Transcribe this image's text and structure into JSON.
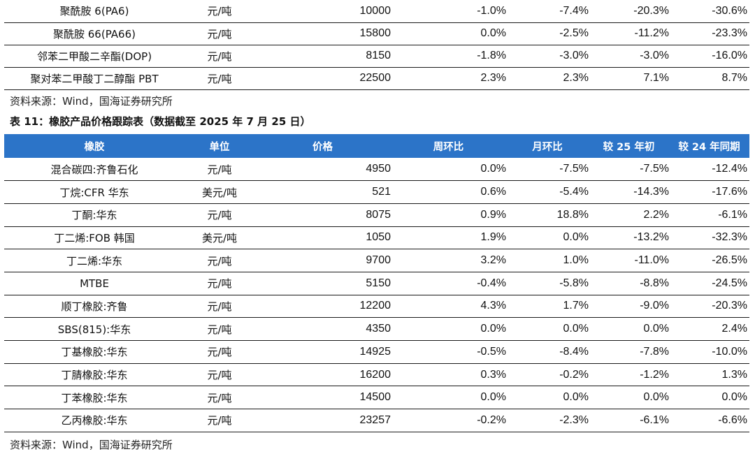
{
  "top_table": {
    "rows": [
      [
        "聚酰胺 6(PA6)",
        "元/吨",
        "10000",
        "-1.0%",
        "-7.4%",
        "-20.3%",
        "-30.6%"
      ],
      [
        "聚酰胺 66(PA66)",
        "元/吨",
        "15800",
        "0.0%",
        "-2.5%",
        "-11.2%",
        "-23.3%"
      ],
      [
        "邻苯二甲酸二辛酯(DOP)",
        "元/吨",
        "8150",
        "-1.8%",
        "-3.0%",
        "-3.0%",
        "-16.0%"
      ],
      [
        "聚对苯二甲酸丁二醇酯 PBT",
        "元/吨",
        "22500",
        "2.3%",
        "2.3%",
        "7.1%",
        "8.7%"
      ]
    ]
  },
  "source_note_1": "资料来源：Wind，国海证券研究所",
  "table_caption": "表 11：橡胶产品价格跟踪表（数据截至 2025 年 7 月 25 日）",
  "main_table": {
    "header_color": "#2c74c8",
    "headers": [
      "橡胶",
      "单位",
      "价格",
      "周环比",
      "月环比",
      "较 25 年初",
      "较 24 年同期"
    ],
    "rows": [
      [
        "混合碳四:齐鲁石化",
        "元/吨",
        "4950",
        "0.0%",
        "-7.5%",
        "-7.5%",
        "-12.4%"
      ],
      [
        "丁烷:CFR 华东",
        "美元/吨",
        "521",
        "0.6%",
        "-5.4%",
        "-14.3%",
        "-17.6%"
      ],
      [
        "丁酮:华东",
        "元/吨",
        "8075",
        "0.9%",
        "18.8%",
        "2.2%",
        "-6.1%"
      ],
      [
        "丁二烯:FOB 韩国",
        "美元/吨",
        "1050",
        "1.9%",
        "0.0%",
        "-13.2%",
        "-32.3%"
      ],
      [
        "丁二烯:华东",
        "元/吨",
        "9700",
        "3.2%",
        "1.0%",
        "-11.0%",
        "-26.5%"
      ],
      [
        "MTBE",
        "元/吨",
        "5150",
        "-0.4%",
        "-5.8%",
        "-8.8%",
        "-24.5%"
      ],
      [
        "顺丁橡胶:齐鲁",
        "元/吨",
        "12200",
        "4.3%",
        "1.7%",
        "-9.0%",
        "-20.3%"
      ],
      [
        "SBS(815):华东",
        "元/吨",
        "4350",
        "0.0%",
        "0.0%",
        "0.0%",
        "2.4%"
      ],
      [
        "丁基橡胶:华东",
        "元/吨",
        "14925",
        "-0.5%",
        "-8.4%",
        "-7.8%",
        "-10.0%"
      ],
      [
        "丁腈橡胶:华东",
        "元/吨",
        "16200",
        "0.3%",
        "-0.2%",
        "-1.2%",
        "1.3%"
      ],
      [
        "丁苯橡胶:华东",
        "元/吨",
        "14500",
        "0.0%",
        "0.0%",
        "0.0%",
        "0.0%"
      ],
      [
        "乙丙橡胶:华东",
        "元/吨",
        "23257",
        "-0.2%",
        "-2.3%",
        "-6.1%",
        "-6.6%"
      ]
    ]
  },
  "source_note_2": "资料来源：Wind，国海证券研究所"
}
